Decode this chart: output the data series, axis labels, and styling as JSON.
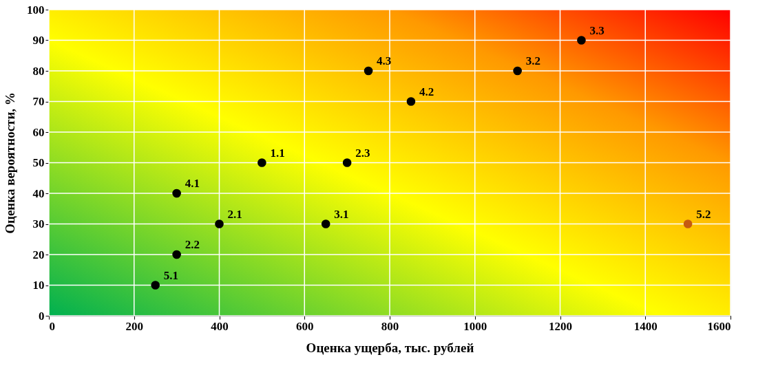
{
  "chart_data": {
    "type": "scatter",
    "xlabel": "Оценка ущерба, тыс. рублей",
    "ylabel": "Оценка вероятности, %",
    "x": [
      500,
      400,
      300,
      700,
      650,
      1100,
      1250,
      300,
      850,
      750,
      250,
      1500
    ],
    "values": [
      50,
      30,
      20,
      50,
      30,
      80,
      90,
      40,
      70,
      80,
      10,
      30
    ],
    "colors": [
      "#000000",
      "#000000",
      "#000000",
      "#000000",
      "#000000",
      "#000000",
      "#000000",
      "#000000",
      "#000000",
      "#000000",
      "#000000",
      "#c55a11"
    ],
    "annotations": [
      {
        "text": "1.1",
        "x": 500,
        "y": 50
      },
      {
        "text": "2.1",
        "x": 400,
        "y": 30
      },
      {
        "text": "2.2",
        "x": 300,
        "y": 20
      },
      {
        "text": "2.3",
        "x": 700,
        "y": 50
      },
      {
        "text": "3.1",
        "x": 650,
        "y": 30
      },
      {
        "text": "3.2",
        "x": 1100,
        "y": 80
      },
      {
        "text": "3.3",
        "x": 1250,
        "y": 90
      },
      {
        "text": "4.1",
        "x": 300,
        "y": 40
      },
      {
        "text": "4.2",
        "x": 850,
        "y": 70
      },
      {
        "text": "4.3",
        "x": 750,
        "y": 80
      },
      {
        "text": "5.1",
        "x": 250,
        "y": 10
      },
      {
        "text": "5.2",
        "x": 1500,
        "y": 30
      }
    ],
    "xlim": [
      0,
      1600
    ],
    "xticks": [
      0,
      200,
      400,
      600,
      800,
      1000,
      1200,
      1400,
      1600
    ],
    "ylim": [
      0,
      100
    ],
    "yticks": [
      0,
      10,
      20,
      30,
      40,
      50,
      60,
      70,
      80,
      90,
      100
    ],
    "grid": true,
    "marker": "circle"
  }
}
